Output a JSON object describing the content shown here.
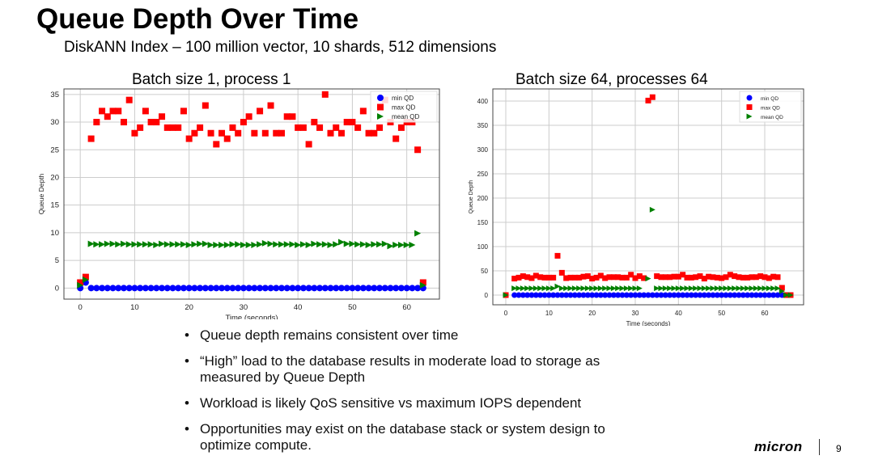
{
  "slide": {
    "title": "Queue Depth Over Time",
    "subtitle": "DiskANN Index – 100 million vector, 10 shards, 512 dimensions",
    "page_number": "9",
    "logo": "micron",
    "bullets": [
      "Queue depth remains consistent over time",
      "“High” load to the database results in moderate load to storage as measured by Queue Depth",
      "Workload is likely QoS sensitive vs maximum IOPS dependent",
      "Opportunities may exist on the database stack or system design to optimize compute."
    ],
    "bullet_symbol": "•"
  },
  "colors": {
    "min": "#0000ff",
    "max": "#ff0000",
    "mean": "#008000"
  },
  "chart_data": [
    {
      "type": "scatter",
      "title": "Batch size 1, process 1",
      "xlabel": "Time (seconds)",
      "ylabel": "Queue Depth",
      "xlim": [
        -3,
        66
      ],
      "ylim": [
        -2,
        36
      ],
      "xticks": [
        0,
        10,
        20,
        30,
        40,
        50,
        60
      ],
      "yticks": [
        0,
        5,
        10,
        15,
        20,
        25,
        30,
        35
      ],
      "grid": true,
      "legend": "top-right",
      "legend_labels": [
        "min QD",
        "max QD",
        "mean QD"
      ],
      "x": [
        0,
        1,
        2,
        3,
        4,
        5,
        6,
        7,
        8,
        9,
        10,
        11,
        12,
        13,
        14,
        15,
        16,
        17,
        18,
        19,
        20,
        21,
        22,
        23,
        24,
        25,
        26,
        27,
        28,
        29,
        30,
        31,
        32,
        33,
        34,
        35,
        36,
        37,
        38,
        39,
        40,
        41,
        42,
        43,
        44,
        45,
        46,
        47,
        48,
        49,
        50,
        51,
        52,
        53,
        54,
        55,
        56,
        57,
        58,
        59,
        60,
        61,
        62,
        63
      ],
      "series": [
        {
          "name": "min QD",
          "values": [
            0,
            1,
            0,
            0,
            0,
            0,
            0,
            0,
            0,
            0,
            0,
            0,
            0,
            0,
            0,
            0,
            0,
            0,
            0,
            0,
            0,
            0,
            0,
            0,
            0,
            0,
            0,
            0,
            0,
            0,
            0,
            0,
            0,
            0,
            0,
            0,
            0,
            0,
            0,
            0,
            0,
            0,
            0,
            0,
            0,
            0,
            0,
            0,
            0,
            0,
            0,
            0,
            0,
            0,
            0,
            0,
            0,
            0,
            0,
            0,
            0,
            0,
            0,
            0
          ]
        },
        {
          "name": "max QD",
          "values": [
            1,
            2,
            27,
            30,
            32,
            31,
            32,
            32,
            30,
            34,
            28,
            29,
            32,
            30,
            30,
            31,
            29,
            29,
            29,
            32,
            27,
            28,
            29,
            33,
            28,
            26,
            28,
            27,
            29,
            28,
            30,
            31,
            28,
            32,
            28,
            33,
            28,
            28,
            31,
            31,
            29,
            29,
            26,
            30,
            29,
            35,
            28,
            29,
            28,
            30,
            30,
            29,
            32,
            28,
            28,
            29,
            34,
            30,
            27,
            29,
            30,
            30,
            25,
            1
          ]
        },
        {
          "name": "mean QD",
          "values": [
            0.5,
            1.5,
            8,
            7.9,
            7.9,
            8,
            8,
            7.9,
            8,
            7.9,
            7.9,
            7.9,
            7.9,
            7.9,
            7.8,
            8,
            7.9,
            7.9,
            7.9,
            7.9,
            7.8,
            7.9,
            8,
            8,
            7.8,
            7.8,
            7.8,
            7.8,
            7.9,
            7.9,
            7.8,
            7.8,
            7.8,
            7.9,
            8.1,
            8,
            7.9,
            7.9,
            7.9,
            7.9,
            7.8,
            7.9,
            7.8,
            8,
            7.9,
            7.9,
            7.8,
            7.9,
            8.3,
            8,
            8,
            7.9,
            7.9,
            7.8,
            7.9,
            7.9,
            8,
            7.6,
            7.8,
            7.8,
            7.8,
            7.8,
            9.9,
            0.5
          ]
        }
      ]
    },
    {
      "type": "scatter",
      "title": "Batch size 64, processes 64",
      "xlabel": "Time (seconds)",
      "ylabel": "Queue Depth",
      "xlim": [
        -3,
        69
      ],
      "ylim": [
        -20,
        425
      ],
      "xticks": [
        0,
        10,
        20,
        30,
        40,
        50,
        60
      ],
      "yticks": [
        0,
        50,
        100,
        150,
        200,
        250,
        300,
        350,
        400
      ],
      "grid": true,
      "legend": "top-right",
      "legend_labels": [
        "min QD",
        "max QD",
        "mean QD"
      ],
      "x": [
        0,
        2,
        3,
        4,
        5,
        6,
        7,
        8,
        9,
        10,
        11,
        12,
        13,
        14,
        15,
        16,
        17,
        18,
        19,
        20,
        21,
        22,
        23,
        24,
        25,
        26,
        27,
        28,
        29,
        30,
        31,
        32,
        33,
        34,
        35,
        36,
        37,
        38,
        39,
        40,
        41,
        42,
        43,
        44,
        45,
        46,
        47,
        48,
        49,
        50,
        51,
        52,
        53,
        54,
        55,
        56,
        57,
        58,
        59,
        60,
        61,
        62,
        63,
        64,
        65,
        66
      ],
      "series": [
        {
          "name": "min QD",
          "values": [
            0,
            0,
            0,
            0,
            0,
            0,
            0,
            0,
            0,
            0,
            0,
            0,
            0,
            0,
            0,
            0,
            0,
            0,
            0,
            0,
            0,
            0,
            0,
            0,
            0,
            0,
            0,
            0,
            0,
            0,
            0,
            0,
            0,
            0,
            0,
            0,
            0,
            0,
            0,
            0,
            0,
            0,
            0,
            0,
            0,
            0,
            0,
            0,
            0,
            0,
            0,
            0,
            0,
            0,
            0,
            0,
            0,
            0,
            0,
            0,
            0,
            0,
            0,
            0,
            0,
            0
          ]
        },
        {
          "name": "max QD",
          "values": [
            0,
            34,
            36,
            39,
            37,
            35,
            40,
            37,
            36,
            36,
            36,
            81,
            46,
            35,
            36,
            36,
            36,
            38,
            39,
            34,
            36,
            40,
            35,
            37,
            37,
            37,
            36,
            36,
            42,
            35,
            39,
            35,
            401,
            408,
            39,
            37,
            37,
            37,
            38,
            38,
            42,
            36,
            36,
            37,
            39,
            34,
            38,
            37,
            36,
            35,
            37,
            42,
            39,
            37,
            36,
            36,
            37,
            37,
            39,
            37,
            35,
            38,
            37,
            15,
            0,
            0
          ]
        },
        {
          "name": "mean QD",
          "values": [
            0,
            14,
            14,
            14,
            14,
            14,
            14,
            14,
            14,
            14,
            14,
            18,
            14,
            14,
            14,
            14,
            14,
            14,
            14,
            14,
            14,
            14,
            14,
            14,
            14,
            14,
            14,
            14,
            14,
            14,
            14,
            null,
            34,
            176,
            14,
            14,
            14,
            14,
            14,
            14,
            14,
            14,
            14,
            14,
            14,
            14,
            14,
            14,
            14,
            14,
            14,
            14,
            14,
            14,
            14,
            14,
            14,
            14,
            14,
            14,
            14,
            14,
            14,
            8,
            0,
            0
          ]
        }
      ]
    }
  ]
}
